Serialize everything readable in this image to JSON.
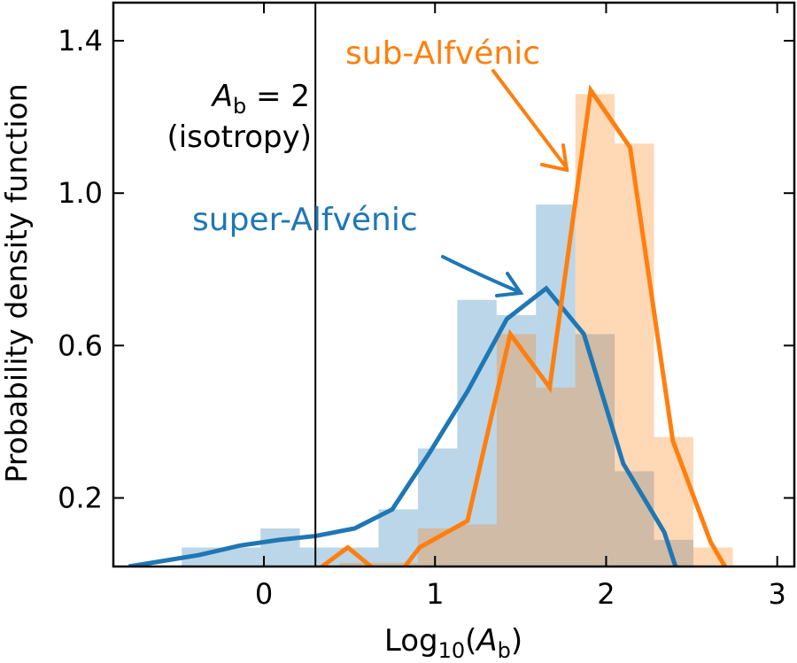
{
  "chart_data": {
    "type": "histogram",
    "xlabel": [
      "Log",
      "10",
      "(",
      "A",
      "b",
      ")"
    ],
    "ylabel": "Probability density function",
    "xlim": [
      -0.88,
      3.1
    ],
    "ylim": [
      0.02,
      1.5
    ],
    "xticks": [
      0,
      1,
      2,
      3
    ],
    "yticks": [
      0.2,
      0.6,
      {
        "value": 1,
        "label": "1.0"
      },
      1.4
    ],
    "bins": [
      -0.48,
      -0.25,
      -0.02,
      0.21,
      0.44,
      0.67,
      0.9,
      1.13,
      1.36,
      1.59,
      1.82,
      2.05,
      2.28,
      2.51,
      2.74
    ],
    "histograms": [
      {
        "color": "#1f77b4",
        "values": [
          0.07,
          0.07,
          0.12,
          0.07,
          0.07,
          0.17,
          0.33,
          0.72,
          0.68,
          0.97,
          0.63,
          0.27,
          0.09,
          0
        ]
      },
      {
        "color": "#ff7f0e",
        "values": [
          0,
          0,
          0,
          0,
          0.03,
          0.03,
          0.12,
          0.13,
          0.63,
          0.49,
          1.26,
          1.13,
          0.36,
          0.07
        ]
      }
    ],
    "series": [
      {
        "color": "#1f77b4",
        "x": [
          -0.79,
          -0.38,
          -0.14,
          0.09,
          0.3,
          0.53,
          0.75,
          0.97,
          1.19,
          1.42,
          1.65,
          1.87,
          2.1,
          2.34,
          2.42
        ],
        "y": [
          0.02,
          0.05,
          0.075,
          0.09,
          0.1,
          0.12,
          0.17,
          0.32,
          0.48,
          0.67,
          0.75,
          0.63,
          0.29,
          0.11,
          0
        ]
      },
      {
        "color": "#ff7f0e",
        "x": [
          0.28,
          0.49,
          0.68,
          0.79,
          0.91,
          1.19,
          1.44,
          1.67,
          1.91,
          2.14,
          2.39,
          2.61,
          2.72
        ],
        "y": [
          0,
          0.07,
          0,
          0,
          0.07,
          0.14,
          0.63,
          0.49,
          1.27,
          1.12,
          0.35,
          0.085,
          0
        ]
      }
    ],
    "vline": 0.301,
    "annotations": {
      "sub": "sub-Alfvénic",
      "super": "super-Alfvénic",
      "iso": [
        "A",
        "b",
        " = 2"
      ],
      "iso2": "(isotropy)"
    }
  }
}
